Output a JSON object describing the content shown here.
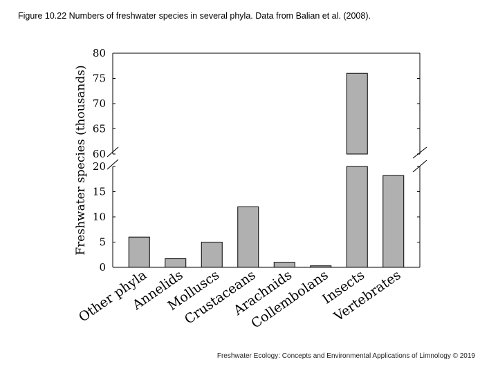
{
  "caption": "Figure 10.22 Numbers of freshwater species in several phyla. Data from Balian et al. (2008).",
  "footer": "Freshwater Ecology: Concepts and Environmental Applications of Limnology © 2019",
  "chart_data": {
    "type": "bar",
    "title": "",
    "xlabel": "",
    "ylabel": "Freshwater species (thousands)",
    "categories": [
      "Other phyla",
      "Annelids",
      "Molluscs",
      "Crustaceans",
      "Arachnids",
      "Collembolans",
      "Insects",
      "Vertebrates"
    ],
    "values": [
      6,
      1.7,
      5,
      12,
      1,
      0.3,
      76,
      18.2
    ],
    "y_segments": [
      {
        "range": [
          0,
          20
        ],
        "ticks": [
          0,
          5,
          10,
          15,
          20
        ]
      },
      {
        "range": [
          60,
          80
        ],
        "ticks": [
          60,
          65,
          70,
          75,
          80
        ]
      }
    ],
    "bar_color": "#b0b0b0",
    "grid": false,
    "legend": "none"
  }
}
